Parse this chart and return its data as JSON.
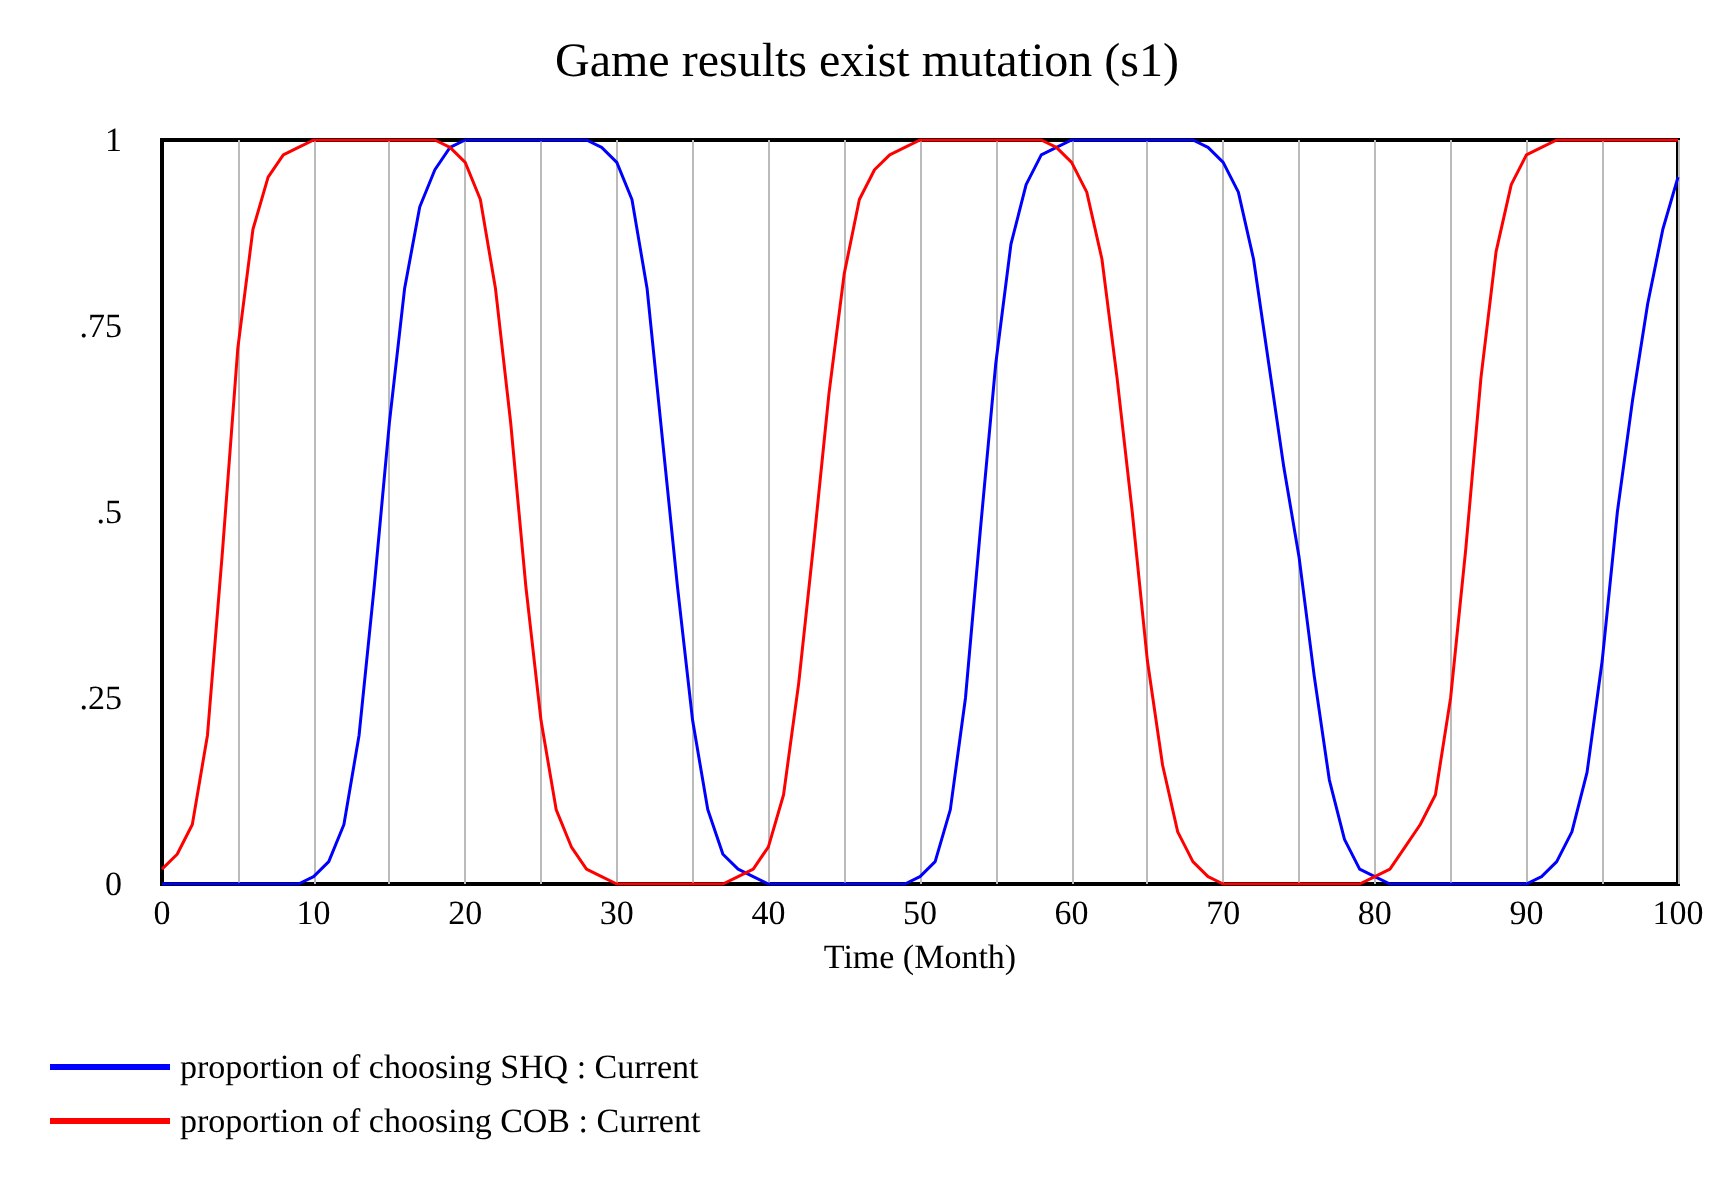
{
  "chart_data": {
    "type": "line",
    "title": "Game results exist mutation (s1)",
    "xlabel": "Time (Month)",
    "x": [
      0,
      1,
      2,
      3,
      4,
      5,
      6,
      7,
      8,
      9,
      10,
      11,
      12,
      13,
      14,
      15,
      16,
      17,
      18,
      19,
      20,
      21,
      22,
      23,
      24,
      25,
      26,
      27,
      28,
      29,
      30,
      31,
      32,
      33,
      34,
      35,
      36,
      37,
      38,
      39,
      40,
      41,
      42,
      43,
      44,
      45,
      46,
      47,
      48,
      49,
      50,
      51,
      52,
      53,
      54,
      55,
      56,
      57,
      58,
      59,
      60,
      61,
      62,
      63,
      64,
      65,
      66,
      67,
      68,
      69,
      70,
      71,
      72,
      73,
      74,
      75,
      76,
      77,
      78,
      79,
      80,
      81,
      82,
      83,
      84,
      85,
      86,
      87,
      88,
      89,
      90,
      91,
      92,
      93,
      94,
      95,
      96,
      97,
      98,
      99,
      100
    ],
    "series": [
      {
        "name": "proportion of choosing SHQ : Current",
        "color": "#0000ff",
        "values": [
          0,
          0,
          0,
          0,
          0,
          0,
          0,
          0,
          0,
          0,
          0.01,
          0.03,
          0.08,
          0.2,
          0.4,
          0.62,
          0.8,
          0.91,
          0.96,
          0.99,
          1,
          1,
          1,
          1,
          1,
          1,
          1,
          1,
          1,
          0.99,
          0.97,
          0.92,
          0.8,
          0.6,
          0.4,
          0.22,
          0.1,
          0.04,
          0.02,
          0.01,
          0,
          0,
          0,
          0,
          0,
          0,
          0,
          0,
          0,
          0,
          0.01,
          0.03,
          0.1,
          0.25,
          0.48,
          0.7,
          0.86,
          0.94,
          0.98,
          0.99,
          1,
          1,
          1,
          1,
          1,
          1,
          1,
          1,
          1,
          0.99,
          0.97,
          0.93,
          0.84,
          0.7,
          0.56,
          0.44,
          0.28,
          0.14,
          0.06,
          0.02,
          0.01,
          0,
          0,
          0,
          0,
          0,
          0,
          0,
          0,
          0,
          0,
          0.01,
          0.03,
          0.07,
          0.15,
          0.3,
          0.5,
          0.65,
          0.78,
          0.88,
          0.95
        ]
      },
      {
        "name": "proportion of choosing COB : Current",
        "color": "#ff0000",
        "values": [
          0.02,
          0.04,
          0.08,
          0.2,
          0.45,
          0.72,
          0.88,
          0.95,
          0.98,
          0.99,
          1,
          1,
          1,
          1,
          1,
          1,
          1,
          1,
          1,
          0.99,
          0.97,
          0.92,
          0.8,
          0.62,
          0.4,
          0.22,
          0.1,
          0.05,
          0.02,
          0.01,
          0,
          0,
          0,
          0,
          0,
          0,
          0,
          0,
          0.01,
          0.02,
          0.05,
          0.12,
          0.27,
          0.46,
          0.66,
          0.82,
          0.92,
          0.96,
          0.98,
          0.99,
          1,
          1,
          1,
          1,
          1,
          1,
          1,
          1,
          1,
          0.99,
          0.97,
          0.93,
          0.84,
          0.68,
          0.5,
          0.3,
          0.16,
          0.07,
          0.03,
          0.01,
          0,
          0,
          0,
          0,
          0,
          0,
          0,
          0,
          0,
          0,
          0.01,
          0.02,
          0.05,
          0.08,
          0.12,
          0.25,
          0.45,
          0.68,
          0.85,
          0.94,
          0.98,
          0.99,
          1,
          1,
          1,
          1,
          1,
          1,
          1,
          1,
          1
        ]
      }
    ],
    "xlim": [
      0,
      100
    ],
    "xticks": [
      0,
      {
        "value": 5,
        "label": null
      },
      10,
      {
        "value": 15,
        "label": null
      },
      20,
      {
        "value": 25,
        "label": null
      },
      30,
      {
        "value": 35,
        "label": null
      },
      40,
      {
        "value": 45,
        "label": null
      },
      50,
      {
        "value": 55,
        "label": null
      },
      60,
      {
        "value": 65,
        "label": null
      },
      70,
      {
        "value": 75,
        "label": null
      },
      80,
      {
        "value": 85,
        "label": null
      },
      90,
      {
        "value": 95,
        "label": null
      },
      100
    ],
    "ylim": [
      0,
      1
    ],
    "yticks": [
      {
        "value": 0,
        "label": "0"
      },
      {
        "value": 0.25,
        "label": ".25"
      },
      {
        "value": 0.5,
        "label": ".5"
      },
      {
        "value": 0.75,
        "label": ".75"
      },
      {
        "value": 1,
        "label": "1"
      }
    ],
    "grid": "x",
    "legend": "bottom"
  }
}
